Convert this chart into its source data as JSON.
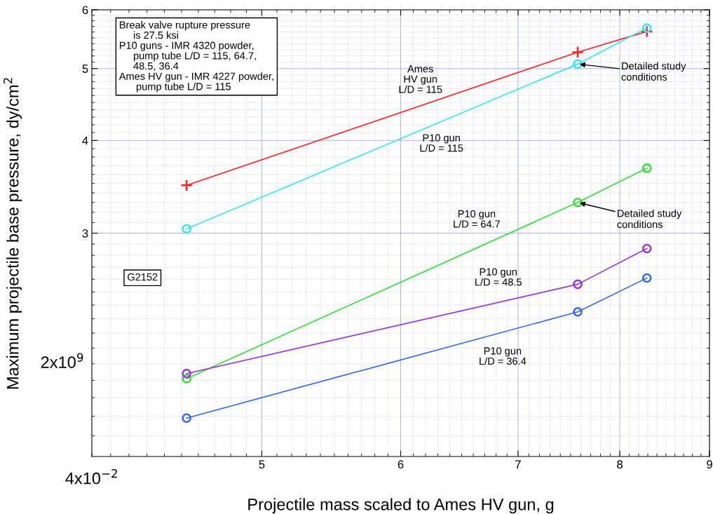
{
  "chart_data": {
    "type": "line",
    "xlabel": "Projectile mass scaled to Ames HV gun, g",
    "ylabel": "Maximum projectile base pressure, dy/cm$^{2}$",
    "log": "xy",
    "grid": true,
    "line_style": "solid",
    "xlim": [
      4,
      9
    ],
    "xticks": [
      {
        "value": 4,
        "label": null
      },
      5,
      6,
      7,
      8,
      9,
      {
        "value": 4.1,
        "label": null
      },
      {
        "value": 4.2,
        "label": null
      },
      {
        "value": 4.3,
        "label": null
      },
      {
        "value": 4.4,
        "label": null
      },
      {
        "value": 4.5,
        "label": null
      },
      {
        "value": 4.6,
        "label": null
      },
      {
        "value": 4.7,
        "label": null
      },
      {
        "value": 4.8,
        "label": null
      },
      {
        "value": 4.9,
        "label": null
      },
      {
        "value": 5.1,
        "label": null
      },
      {
        "value": 5.2,
        "label": null
      },
      {
        "value": 5.3,
        "label": null
      },
      {
        "value": 5.4,
        "label": null
      },
      {
        "value": 5.5,
        "label": null
      },
      {
        "value": 5.6,
        "label": null
      },
      {
        "value": 5.7,
        "label": null
      },
      {
        "value": 5.8,
        "label": null
      },
      {
        "value": 5.9,
        "label": null
      },
      {
        "value": 6.1,
        "label": null
      },
      {
        "value": 6.2,
        "label": null
      },
      {
        "value": 6.3,
        "label": null
      },
      {
        "value": 6.4,
        "label": null
      },
      {
        "value": 6.5,
        "label": null
      },
      {
        "value": 6.6,
        "label": null
      },
      {
        "value": 6.7,
        "label": null
      },
      {
        "value": 6.8,
        "label": null
      },
      {
        "value": 6.9,
        "label": null
      },
      {
        "value": 7.1,
        "label": null
      },
      {
        "value": 7.2,
        "label": null
      },
      {
        "value": 7.3,
        "label": null
      },
      {
        "value": 7.4,
        "label": null
      },
      {
        "value": 7.5,
        "label": null
      },
      {
        "value": 7.6,
        "label": null
      },
      {
        "value": 7.7,
        "label": null
      },
      {
        "value": 7.8,
        "label": null
      },
      {
        "value": 7.9,
        "label": null
      },
      {
        "value": 8.1,
        "label": null
      },
      {
        "value": 8.2,
        "label": null
      },
      {
        "value": 8.3,
        "label": null
      },
      {
        "value": 8.4,
        "label": null
      },
      {
        "value": 8.5,
        "label": null
      },
      {
        "value": 8.6,
        "label": null
      },
      {
        "value": 8.7,
        "label": null
      },
      {
        "value": 8.8,
        "label": null
      },
      {
        "value": 8.9,
        "label": null
      }
    ],
    "ylim": [
      1.5,
      6
    ],
    "yticks": [
      {
        "value": 2,
        "label": null
      },
      3,
      4,
      5,
      6,
      {
        "value": 1.6,
        "label": null
      },
      {
        "value": 1.7,
        "label": null
      },
      {
        "value": 1.8,
        "label": null
      },
      {
        "value": 1.9,
        "label": null
      },
      {
        "value": 2.1,
        "label": null
      },
      {
        "value": 2.2,
        "label": null
      },
      {
        "value": 2.3,
        "label": null
      },
      {
        "value": 2.4,
        "label": null
      },
      {
        "value": 2.5,
        "label": null
      },
      {
        "value": 2.6,
        "label": null
      },
      {
        "value": 2.7,
        "label": null
      },
      {
        "value": 2.8,
        "label": null
      },
      {
        "value": 2.9,
        "label": null
      },
      {
        "value": 3.1,
        "label": null
      },
      {
        "value": 3.2,
        "label": null
      },
      {
        "value": 3.3,
        "label": null
      },
      {
        "value": 3.4,
        "label": null
      },
      {
        "value": 3.5,
        "label": null
      },
      {
        "value": 3.6,
        "label": null
      },
      {
        "value": 3.7,
        "label": null
      },
      {
        "value": 3.8,
        "label": null
      },
      {
        "value": 3.9,
        "label": null
      },
      {
        "value": 4.1,
        "label": null
      },
      {
        "value": 4.2,
        "label": null
      },
      {
        "value": 4.3,
        "label": null
      },
      {
        "value": 4.4,
        "label": null
      },
      {
        "value": 4.5,
        "label": null
      },
      {
        "value": 4.6,
        "label": null
      },
      {
        "value": 4.7,
        "label": null
      },
      {
        "value": 4.8,
        "label": null
      },
      {
        "value": 4.9,
        "label": null
      },
      {
        "value": 5.1,
        "label": null
      },
      {
        "value": 5.2,
        "label": null
      },
      {
        "value": 5.3,
        "label": null
      },
      {
        "value": 5.4,
        "label": null
      },
      {
        "value": 5.5,
        "label": null
      },
      {
        "value": 5.6,
        "label": null
      },
      {
        "value": 5.7,
        "label": null
      },
      {
        "value": 5.8,
        "label": null
      },
      {
        "value": 5.9,
        "label": null
      }
    ],
    "x": [
      4.53,
      7.57,
      8.29
    ],
    "series": [
      {
        "color": "#ff2020",
        "marker": "cross",
        "values": [
          3.48,
          5.26,
          5.61
        ]
      },
      {
        "color": "#33e6f0",
        "marker": "circle",
        "values": [
          3.04,
          5.07,
          5.67
        ]
      },
      {
        "color": "#33dd33",
        "marker": "circle",
        "values": [
          1.91,
          3.3,
          3.67
        ]
      },
      {
        "color": "#9933dd",
        "marker": "circle",
        "values": [
          1.94,
          2.56,
          2.86
        ]
      },
      {
        "color": "#3366ee",
        "marker": "circle",
        "values": [
          1.69,
          2.35,
          2.61
        ]
      }
    ],
    "annotations": [
      "Break valve rupture pressure\n     is 27.5 ksi\nP10 guns - IMR 4320 powder,\n     pump tube L/D = 115, 64.7,\n     48.5, 36.4\nAmes HV gun - IMR 4227 powder,\n      pump tube L/D = 115",
      "G2152",
      "Ames\nHV gun\nL/D = 115",
      "P10 gun\nL/D = 115",
      "P10 gun\nL/D = 64.7",
      "P10 gun\nL/D = 48.5",
      "P10 gun\nL/D = 36.4",
      "4x10$^{−2}$",
      "2x10$^{9}$",
      {
        "text": "Detailed study\nconditions",
        "x": 7.57,
        "y": 5.07
      },
      {
        "text": "Detailed study\nconditions",
        "x": 7.57,
        "y": 3.3
      }
    ]
  }
}
